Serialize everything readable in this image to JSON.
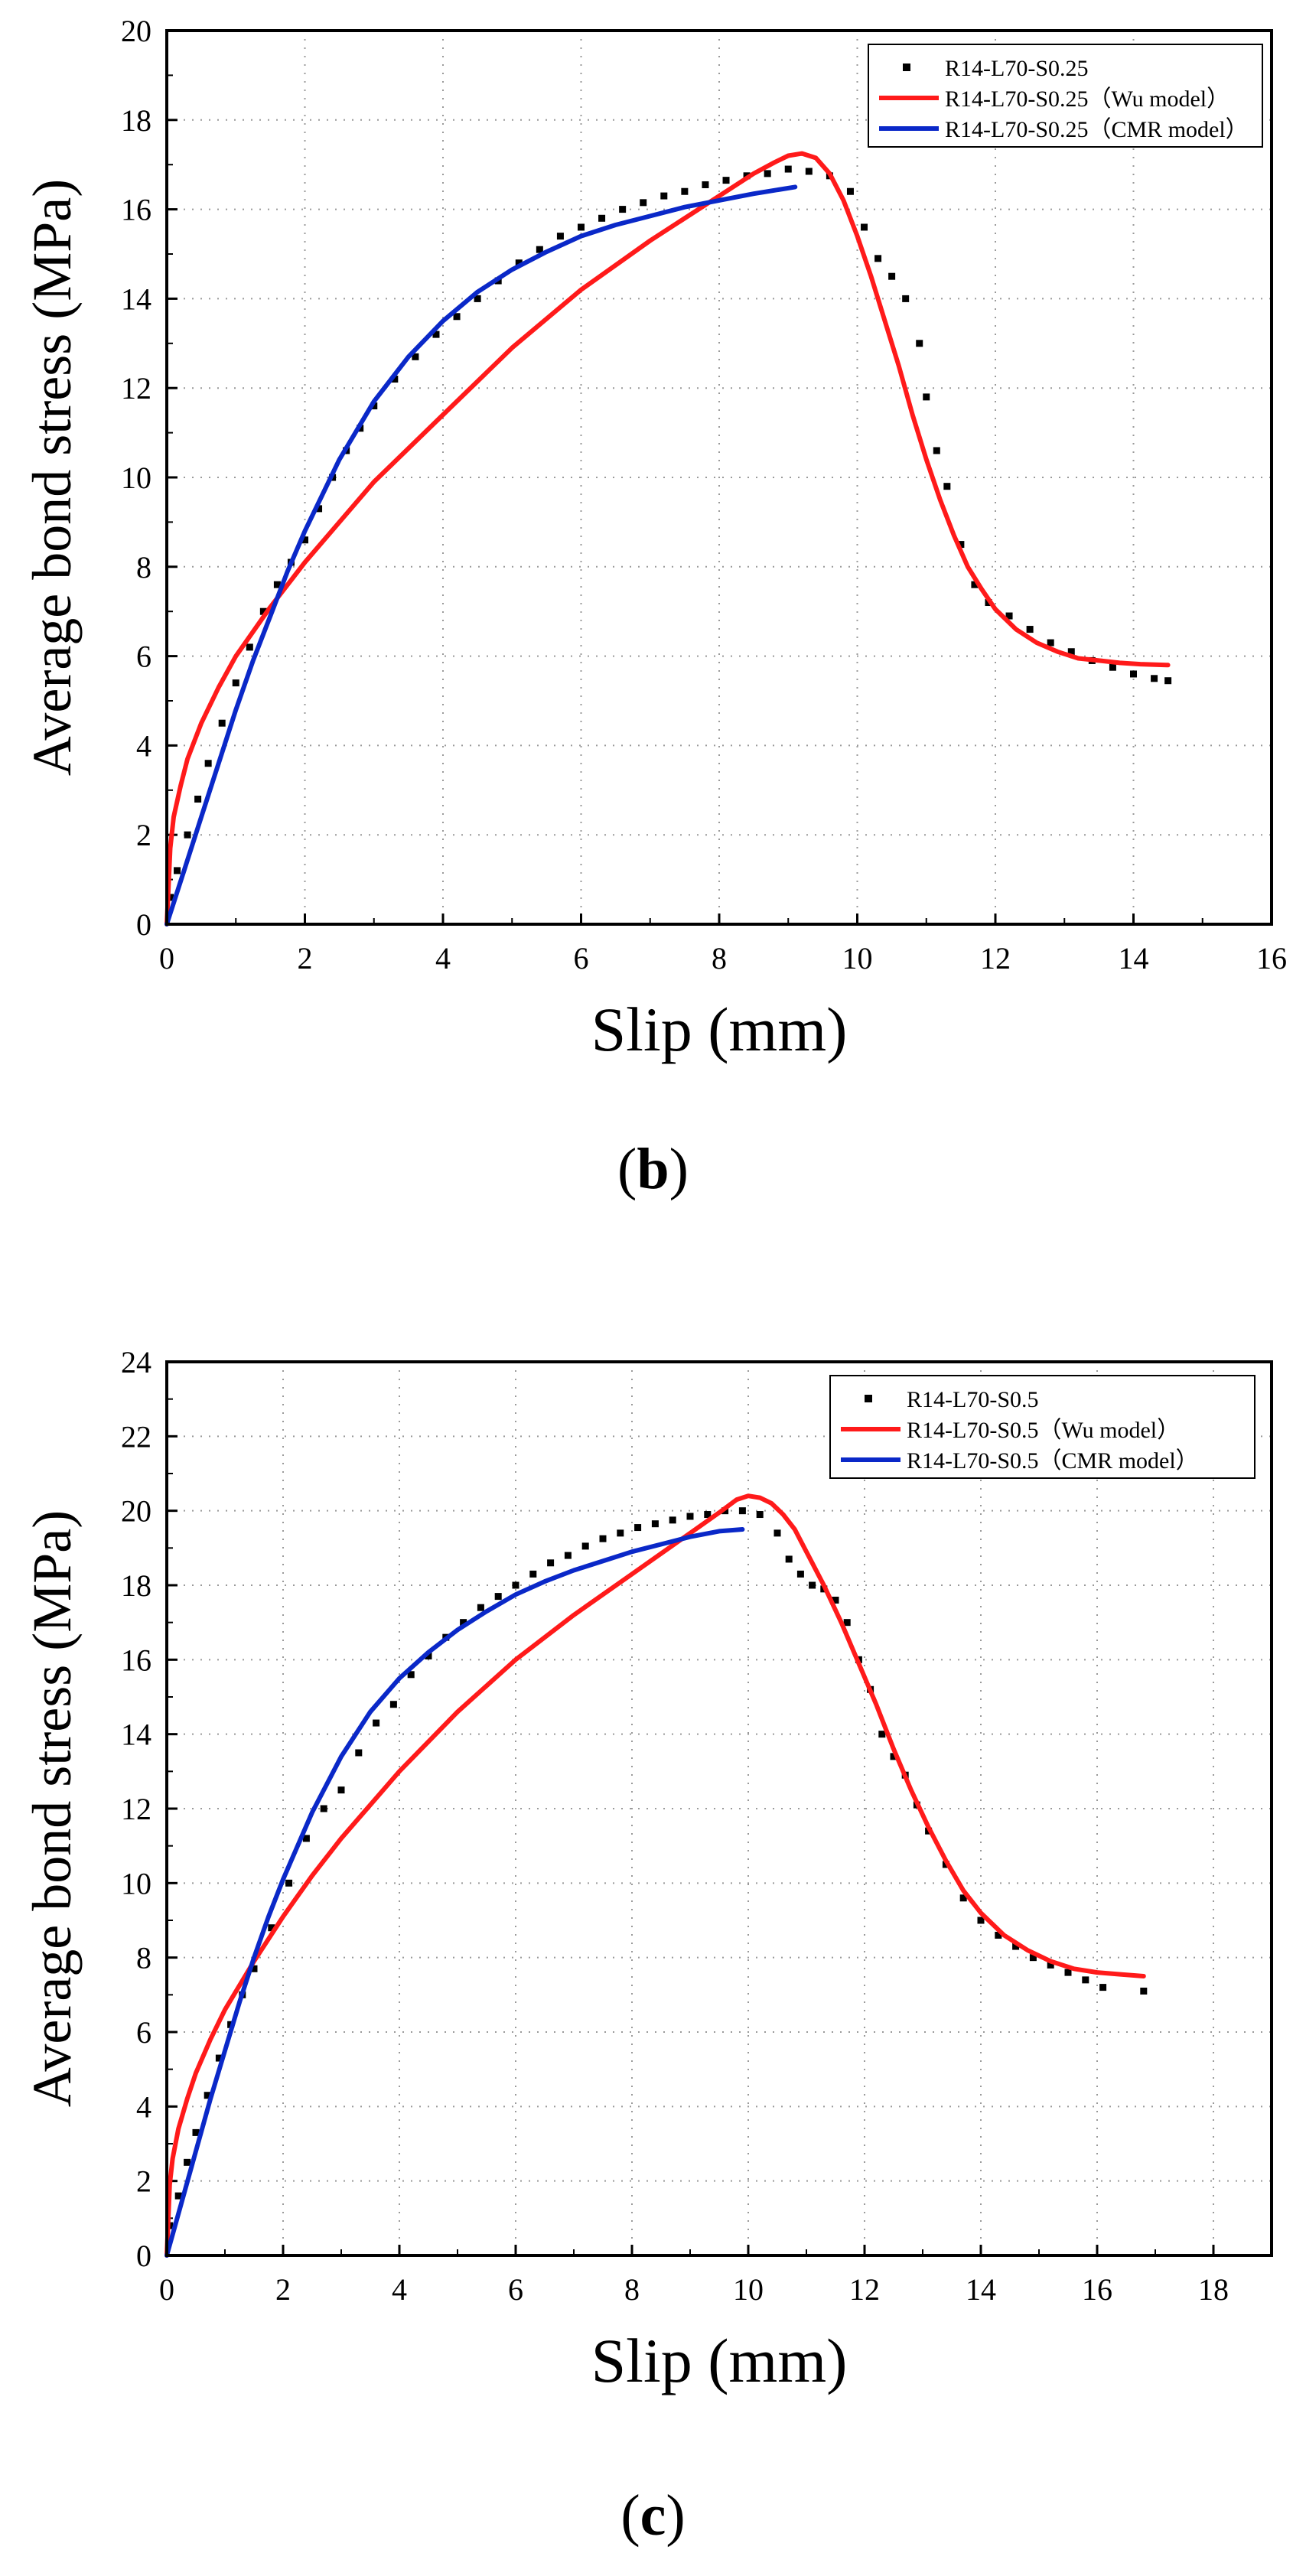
{
  "colors": {
    "experimental": "#000000",
    "wu_model": "#ff1a1a",
    "cmr_model": "#0a28c8",
    "grid": "#9a9a9a"
  },
  "panels": [
    {
      "caption_letter": "b"
    },
    {
      "caption_letter": "c"
    }
  ],
  "chart_data": [
    {
      "type": "line",
      "xlabel": "Slip (mm)",
      "ylabel": "Average bond stress (MPa)",
      "xlim": [
        0,
        16
      ],
      "ylim": [
        0,
        20
      ],
      "xticks": [
        0,
        2,
        4,
        6,
        8,
        10,
        12,
        14,
        16
      ],
      "yticks": [
        0,
        2,
        4,
        6,
        8,
        10,
        12,
        14,
        16,
        18,
        20
      ],
      "grid": true,
      "legend_position": "top-right",
      "series": [
        {
          "name": "R14-L70-S0.25",
          "style": "markers",
          "x": [
            0.05,
            0.15,
            0.3,
            0.45,
            0.6,
            0.8,
            1.0,
            1.2,
            1.4,
            1.6,
            1.8,
            2.0,
            2.2,
            2.4,
            2.6,
            2.8,
            3.0,
            3.3,
            3.6,
            3.9,
            4.2,
            4.5,
            4.8,
            5.1,
            5.4,
            5.7,
            6.0,
            6.3,
            6.6,
            6.9,
            7.2,
            7.5,
            7.8,
            8.1,
            8.4,
            8.7,
            9.0,
            9.3,
            9.6,
            9.9,
            10.1,
            10.3,
            10.5,
            10.7,
            10.9,
            11.0,
            11.15,
            11.3,
            11.5,
            11.7,
            11.9,
            12.2,
            12.5,
            12.8,
            13.1,
            13.4,
            13.7,
            14.0,
            14.3,
            14.5
          ],
          "y": [
            0.6,
            1.2,
            2.0,
            2.8,
            3.6,
            4.5,
            5.4,
            6.2,
            7.0,
            7.6,
            8.1,
            8.6,
            9.3,
            10.0,
            10.6,
            11.1,
            11.6,
            12.2,
            12.7,
            13.2,
            13.6,
            14.0,
            14.4,
            14.8,
            15.1,
            15.4,
            15.6,
            15.8,
            16.0,
            16.15,
            16.3,
            16.4,
            16.55,
            16.65,
            16.75,
            16.8,
            16.9,
            16.85,
            16.75,
            16.4,
            15.6,
            14.9,
            14.5,
            14.0,
            13.0,
            11.8,
            10.6,
            9.8,
            8.5,
            7.6,
            7.2,
            6.9,
            6.6,
            6.3,
            6.1,
            5.9,
            5.75,
            5.6,
            5.5,
            5.45
          ]
        },
        {
          "name": "R14-L70-S0.25（Wu model）",
          "style": "line",
          "x": [
            0,
            0.05,
            0.1,
            0.2,
            0.3,
            0.5,
            0.75,
            1.0,
            1.5,
            2.0,
            2.5,
            3.0,
            4.0,
            5.0,
            6.0,
            7.0,
            8.0,
            8.5,
            8.8,
            9.0,
            9.2,
            9.4,
            9.6,
            9.8,
            10.0,
            10.2,
            10.4,
            10.6,
            10.8,
            11.0,
            11.2,
            11.4,
            11.6,
            11.8,
            12.0,
            12.3,
            12.6,
            12.9,
            13.2,
            13.5,
            13.8,
            14.1,
            14.5
          ],
          "y": [
            0,
            1.7,
            2.4,
            3.1,
            3.7,
            4.5,
            5.3,
            6.0,
            7.1,
            8.1,
            9.0,
            9.9,
            11.4,
            12.9,
            14.2,
            15.3,
            16.3,
            16.8,
            17.05,
            17.2,
            17.25,
            17.15,
            16.8,
            16.2,
            15.4,
            14.5,
            13.5,
            12.5,
            11.4,
            10.4,
            9.5,
            8.7,
            8.0,
            7.5,
            7.05,
            6.6,
            6.3,
            6.1,
            5.95,
            5.9,
            5.85,
            5.82,
            5.8
          ]
        },
        {
          "name": "R14-L70-S0.25（CMR model）",
          "style": "line",
          "x": [
            0,
            0.25,
            0.5,
            0.75,
            1.0,
            1.25,
            1.5,
            1.75,
            2.0,
            2.5,
            3.0,
            3.5,
            4.0,
            4.5,
            5.0,
            5.5,
            6.0,
            6.5,
            7.0,
            7.5,
            8.0,
            8.5,
            9.1
          ],
          "y": [
            0,
            1.2,
            2.4,
            3.6,
            4.8,
            5.9,
            6.9,
            7.9,
            8.8,
            10.4,
            11.7,
            12.7,
            13.5,
            14.15,
            14.65,
            15.05,
            15.4,
            15.65,
            15.85,
            16.05,
            16.2,
            16.35,
            16.5
          ]
        }
      ]
    },
    {
      "type": "line",
      "xlabel": "Slip (mm)",
      "ylabel": "Average bond stress (MPa)",
      "xlim": [
        0,
        19
      ],
      "ylim": [
        0,
        24
      ],
      "xticks": [
        0,
        2,
        4,
        6,
        8,
        10,
        12,
        14,
        16,
        18
      ],
      "yticks": [
        0,
        2,
        4,
        6,
        8,
        10,
        12,
        14,
        16,
        18,
        20,
        22,
        24
      ],
      "grid": true,
      "legend_position": "top-right",
      "series": [
        {
          "name": "R14-L70-S0.5",
          "style": "markers",
          "x": [
            0.05,
            0.2,
            0.35,
            0.5,
            0.7,
            0.9,
            1.1,
            1.3,
            1.5,
            1.8,
            2.1,
            2.4,
            2.7,
            3.0,
            3.3,
            3.6,
            3.9,
            4.2,
            4.5,
            4.8,
            5.1,
            5.4,
            5.7,
            6.0,
            6.3,
            6.6,
            6.9,
            7.2,
            7.5,
            7.8,
            8.1,
            8.4,
            8.7,
            9.0,
            9.3,
            9.6,
            9.9,
            10.2,
            10.5,
            10.7,
            10.9,
            11.1,
            11.3,
            11.5,
            11.7,
            11.9,
            12.1,
            12.3,
            12.5,
            12.7,
            12.9,
            13.1,
            13.4,
            13.7,
            14.0,
            14.3,
            14.6,
            14.9,
            15.2,
            15.5,
            15.8,
            16.1,
            16.8
          ],
          "y": [
            0.8,
            1.6,
            2.5,
            3.3,
            4.3,
            5.3,
            6.2,
            7.0,
            7.7,
            8.8,
            10.0,
            11.2,
            12.0,
            12.5,
            13.5,
            14.3,
            14.8,
            15.6,
            16.1,
            16.6,
            17.0,
            17.4,
            17.7,
            18.0,
            18.3,
            18.6,
            18.8,
            19.05,
            19.25,
            19.4,
            19.55,
            19.65,
            19.75,
            19.85,
            19.9,
            20.0,
            20.0,
            19.9,
            19.4,
            18.7,
            18.3,
            18.0,
            17.9,
            17.6,
            17.0,
            16.0,
            15.2,
            14.0,
            13.4,
            12.9,
            12.1,
            11.4,
            10.5,
            9.6,
            9.0,
            8.6,
            8.3,
            8.0,
            7.8,
            7.6,
            7.4,
            7.2,
            7.1
          ]
        },
        {
          "name": "R14-L70-S0.5（Wu model）",
          "style": "line",
          "x": [
            0,
            0.05,
            0.1,
            0.2,
            0.35,
            0.5,
            0.75,
            1.0,
            1.5,
            2.0,
            2.5,
            3.0,
            4.0,
            5.0,
            6.0,
            7.0,
            8.0,
            9.0,
            9.5,
            9.8,
            10.0,
            10.2,
            10.4,
            10.6,
            10.8,
            11.0,
            11.3,
            11.6,
            11.9,
            12.2,
            12.5,
            12.8,
            13.1,
            13.4,
            13.7,
            14.0,
            14.4,
            14.8,
            15.2,
            15.6,
            16.0,
            16.4,
            16.8
          ],
          "y": [
            0,
            1.9,
            2.6,
            3.4,
            4.2,
            4.9,
            5.8,
            6.6,
            7.9,
            9.1,
            10.2,
            11.2,
            13.0,
            14.6,
            16.0,
            17.2,
            18.3,
            19.4,
            19.95,
            20.3,
            20.4,
            20.35,
            20.2,
            19.9,
            19.5,
            18.9,
            18.0,
            17.0,
            15.9,
            14.8,
            13.6,
            12.5,
            11.5,
            10.6,
            9.8,
            9.2,
            8.6,
            8.2,
            7.9,
            7.7,
            7.6,
            7.55,
            7.5
          ]
        },
        {
          "name": "R14-L70-S0.5（CMR model）",
          "style": "line",
          "x": [
            0,
            0.25,
            0.5,
            0.75,
            1.0,
            1.25,
            1.5,
            1.75,
            2.0,
            2.5,
            3.0,
            3.5,
            4.0,
            4.5,
            5.0,
            5.5,
            6.0,
            6.5,
            7.0,
            7.5,
            8.0,
            8.5,
            9.0,
            9.5,
            9.9
          ],
          "y": [
            0,
            1.4,
            2.8,
            4.2,
            5.5,
            6.8,
            8.0,
            9.1,
            10.1,
            11.9,
            13.4,
            14.6,
            15.5,
            16.2,
            16.8,
            17.3,
            17.75,
            18.1,
            18.4,
            18.65,
            18.9,
            19.1,
            19.3,
            19.45,
            19.5
          ]
        }
      ]
    }
  ]
}
